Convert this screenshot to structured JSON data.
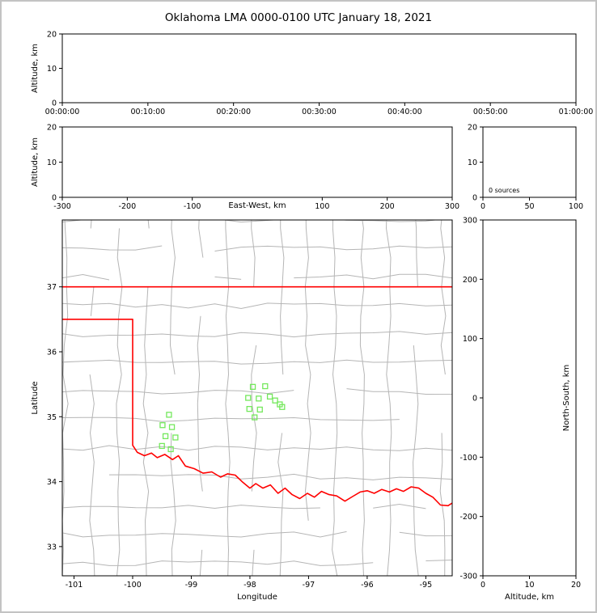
{
  "title": "Oklahoma LMA 0000-0100 UTC January 18, 2021",
  "colors": {
    "frame": "#000000",
    "county_line": "#b5b5b5",
    "state_border": "#ff0000",
    "source_marker": "#74e85c",
    "page_border": "#c3c3c3",
    "background": "#ffffff"
  },
  "chart_data": [
    {
      "id": "time_height",
      "type": "scatter",
      "xlabel": "",
      "ylabel": "Altitude, km",
      "xlim": [
        0,
        3600
      ],
      "ylim": [
        0,
        20
      ],
      "xticks": [
        {
          "v": 0,
          "label": "00:00:00"
        },
        {
          "v": 600,
          "label": "00:10:00"
        },
        {
          "v": 1200,
          "label": "00:20:00"
        },
        {
          "v": 1800,
          "label": "00:30:00"
        },
        {
          "v": 2400,
          "label": "00:40:00"
        },
        {
          "v": 3000,
          "label": "00:50:00"
        },
        {
          "v": 3600,
          "label": "01:00:00"
        }
      ],
      "yticks": [
        0,
        10,
        20
      ],
      "points": []
    },
    {
      "id": "ew_height",
      "type": "scatter",
      "xlabel": "East-West, km",
      "ylabel": "Altitude, km",
      "xlim": [
        -300,
        300
      ],
      "ylim": [
        0,
        20
      ],
      "xticks": [
        -300,
        -200,
        -100,
        100,
        200,
        300
      ],
      "yticks": [
        0,
        10,
        20
      ],
      "points": []
    },
    {
      "id": "src_histogram",
      "type": "line",
      "annotation": "0 sources",
      "xlabel": "",
      "ylabel": "",
      "xlim": [
        0,
        100
      ],
      "ylim": [
        0,
        20
      ],
      "xticks": [
        0,
        50,
        100
      ],
      "yticks": [
        0,
        10,
        20
      ],
      "points": []
    },
    {
      "id": "plan_view",
      "type": "scatter",
      "xlabel": "Longitude",
      "ylabel": "Latitude",
      "xlim": [
        -101.2,
        -94.55
      ],
      "ylim": [
        32.55,
        38.03
      ],
      "xticks": [
        -101,
        -100,
        -99,
        -98,
        -97,
        -96,
        -95
      ],
      "yticks": [
        33,
        34,
        35,
        36,
        37
      ],
      "points": [
        [
          -97.95,
          35.46
        ],
        [
          -97.74,
          35.47
        ],
        [
          -98.03,
          35.29
        ],
        [
          -97.85,
          35.28
        ],
        [
          -97.66,
          35.31
        ],
        [
          -97.57,
          35.25
        ],
        [
          -98.01,
          35.12
        ],
        [
          -97.83,
          35.11
        ],
        [
          -97.92,
          34.99
        ],
        [
          -97.49,
          35.19
        ],
        [
          -97.45,
          35.15
        ],
        [
          -99.38,
          35.03
        ],
        [
          -99.49,
          34.87
        ],
        [
          -99.33,
          34.84
        ],
        [
          -99.44,
          34.7
        ],
        [
          -99.27,
          34.68
        ],
        [
          -99.5,
          34.55
        ],
        [
          -99.35,
          34.5
        ]
      ]
    },
    {
      "id": "ns_height",
      "type": "scatter",
      "xlabel": "Altitude, km",
      "ylabel": "North-South, km",
      "xlim": [
        0,
        20
      ],
      "ylim": [
        -300,
        300
      ],
      "xticks": [
        0,
        10,
        20
      ],
      "yticks": [
        -300,
        -200,
        -100,
        0,
        100,
        200,
        300
      ],
      "points": []
    }
  ]
}
